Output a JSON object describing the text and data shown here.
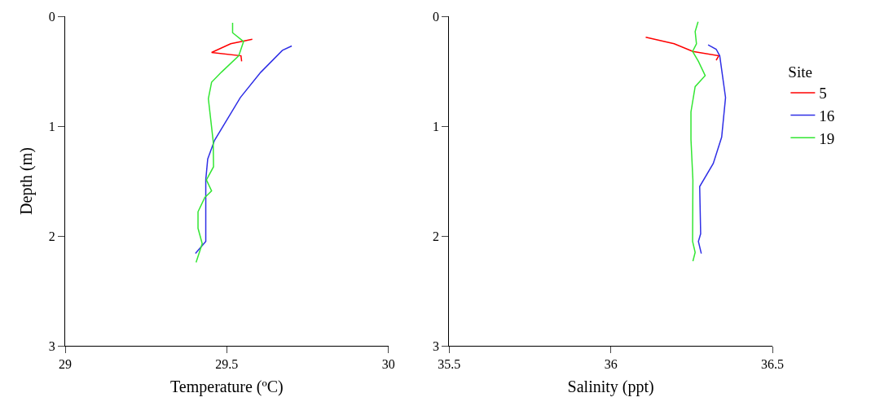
{
  "chart_data": [
    {
      "type": "line",
      "xlabel": "Temperature (ºC)",
      "ylabel": "Depth (m)",
      "xlim": [
        29,
        30
      ],
      "xticks": [
        29,
        29.5,
        30
      ],
      "ylim": [
        3,
        0
      ],
      "yticks": [
        0,
        1,
        2,
        3
      ],
      "legend": false,
      "series": [
        {
          "color": "#ff0000",
          "x": [
            29.579,
            29.512,
            29.453,
            29.544,
            29.546
          ],
          "values": [
            0.21,
            0.25,
            0.33,
            0.36,
            0.41
          ]
        },
        {
          "color": "#2f2fe6",
          "x": [
            29.701,
            29.672,
            29.605,
            29.542,
            29.462,
            29.441,
            29.435,
            29.435,
            29.403
          ],
          "values": [
            0.27,
            0.31,
            0.51,
            0.74,
            1.13,
            1.3,
            1.49,
            2.05,
            2.16
          ]
        },
        {
          "color": "#33e633",
          "x": [
            29.518,
            29.518,
            29.552,
            29.537,
            29.483,
            29.453,
            29.443,
            29.458,
            29.459,
            29.437,
            29.453,
            29.432,
            29.411,
            29.411,
            29.424,
            29.405
          ],
          "values": [
            0.06,
            0.15,
            0.23,
            0.36,
            0.51,
            0.6,
            0.75,
            1.14,
            1.37,
            1.49,
            1.59,
            1.65,
            1.78,
            1.93,
            2.07,
            2.24
          ]
        }
      ]
    },
    {
      "type": "line",
      "xlabel": "Salinity (ppt)",
      "legend_title": "Site",
      "xlim": [
        35.5,
        36.5
      ],
      "xticks": [
        35.5,
        36,
        36.5
      ],
      "ylim": [
        3,
        0
      ],
      "yticks": [
        0,
        1,
        2,
        3
      ],
      "legend": "right",
      "series": [
        {
          "name": "5",
          "color": "#ff0000",
          "x": [
            36.108,
            36.196,
            36.254,
            36.334,
            36.326
          ],
          "values": [
            0.19,
            0.25,
            0.32,
            0.36,
            0.4
          ]
        },
        {
          "name": "16",
          "color": "#2f2fe6",
          "x": [
            36.301,
            36.326,
            36.337,
            36.355,
            36.343,
            36.317,
            36.275,
            36.278,
            36.271,
            36.28
          ],
          "values": [
            0.26,
            0.3,
            0.36,
            0.74,
            1.1,
            1.34,
            1.55,
            1.98,
            2.05,
            2.16
          ]
        },
        {
          "name": "19",
          "color": "#33e633",
          "x": [
            36.27,
            36.261,
            36.265,
            36.253,
            36.271,
            36.292,
            36.261,
            36.248,
            36.248,
            36.254,
            36.253,
            36.261,
            36.254
          ],
          "values": [
            0.05,
            0.14,
            0.25,
            0.32,
            0.41,
            0.54,
            0.64,
            0.87,
            1.12,
            1.49,
            2.05,
            2.15,
            2.23
          ]
        }
      ]
    }
  ]
}
